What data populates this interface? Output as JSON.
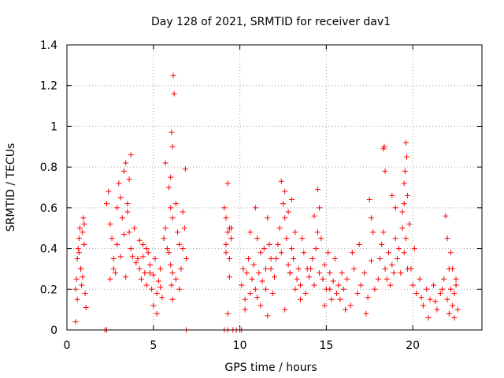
{
  "chart_data": {
    "type": "scatter",
    "title": "Day 128 of 2021, SRMTID for receiver dav1",
    "xlabel": "GPS time / hours",
    "ylabel": "SRMTID / TECUs",
    "xlim": [
      0,
      24
    ],
    "ylim": [
      0,
      1.4
    ],
    "xticks": [
      0,
      5,
      10,
      15,
      20
    ],
    "xtick_labels": [
      "0",
      "5",
      "10",
      "15",
      "20"
    ],
    "yticks": [
      0,
      0.2,
      0.4,
      0.6,
      0.8,
      1.0,
      1.2,
      1.4
    ],
    "ytick_labels": [
      "0",
      "0.2",
      "0.4",
      "0.6",
      "0.8",
      "1",
      "1.2",
      "1.4"
    ],
    "grid": true,
    "marker": "+",
    "marker_color": "#ff0000",
    "series": [
      {
        "name": "SRMTID",
        "x": [
          0.5,
          0.55,
          0.6,
          0.65,
          0.7,
          0.75,
          0.8,
          0.85,
          0.9,
          0.95,
          1.0,
          1.05,
          0.6,
          0.7,
          0.8,
          0.9,
          1.0,
          1.1,
          2.3,
          2.4,
          2.5,
          2.6,
          2.7,
          2.8,
          2.9,
          3.0,
          3.1,
          3.2,
          3.3,
          3.4,
          3.5,
          3.6,
          3.7,
          3.8,
          3.9,
          4.0,
          2.5,
          2.7,
          2.9,
          3.1,
          3.3,
          3.5,
          3.7,
          3.4,
          3.6,
          4.1,
          4.2,
          4.3,
          4.4,
          4.5,
          4.6,
          4.7,
          4.8,
          4.9,
          5.0,
          5.1,
          5.2,
          5.3,
          5.4,
          5.5,
          4.2,
          4.4,
          4.6,
          4.8,
          5.0,
          5.2,
          5.4,
          5.6,
          5.7,
          5.8,
          5.9,
          6.0,
          6.05,
          6.1,
          6.15,
          6.2,
          6.3,
          6.4,
          6.5,
          6.6,
          6.7,
          6.8,
          6.9,
          5.7,
          5.9,
          6.0,
          6.1,
          6.3,
          6.5,
          6.7,
          6.85,
          6.0,
          6.1,
          6.05,
          6.1,
          9.1,
          9.2,
          9.3,
          9.4,
          9.5,
          9.2,
          9.3,
          9.4,
          9.3,
          9.5,
          9.4,
          9.2,
          10.1,
          10.2,
          10.3,
          10.4,
          10.5,
          10.6,
          10.7,
          10.8,
          10.9,
          11.0,
          11.1,
          11.2,
          11.3,
          11.4,
          11.5,
          11.6,
          11.7,
          11.8,
          11.9,
          12.0,
          10.3,
          10.6,
          10.9,
          11.2,
          11.5,
          11.8,
          12.1,
          11.0,
          11.6,
          12.2,
          12.3,
          12.4,
          12.5,
          12.6,
          12.7,
          12.8,
          12.9,
          13.0,
          13.1,
          13.2,
          13.3,
          13.4,
          13.5,
          13.6,
          13.7,
          13.8,
          13.9,
          14.0,
          12.4,
          12.6,
          12.8,
          13.0,
          13.2,
          13.5,
          12.6,
          12.9,
          14.1,
          14.2,
          14.3,
          14.4,
          14.5,
          14.6,
          14.7,
          14.8,
          14.9,
          15.0,
          15.1,
          15.2,
          15.3,
          15.4,
          15.5,
          14.3,
          14.6,
          14.9,
          15.2,
          14.5,
          15.6,
          15.7,
          15.8,
          15.9,
          16.0,
          16.2,
          16.4,
          16.6,
          16.8,
          17.0,
          17.2,
          17.4,
          17.6,
          17.8,
          18.0,
          16.1,
          16.5,
          16.9,
          17.3,
          17.7,
          17.5,
          17.6,
          18.1,
          18.2,
          18.3,
          18.4,
          18.5,
          18.6,
          18.7,
          18.8,
          18.9,
          19.0,
          19.1,
          19.2,
          19.3,
          19.4,
          19.5,
          19.6,
          19.7,
          19.8,
          18.3,
          18.35,
          18.4,
          18.8,
          19.0,
          19.5,
          19.55,
          19.6,
          19.65,
          19.7,
          19.4,
          19.5,
          19.9,
          20.0,
          20.2,
          20.4,
          20.6,
          20.8,
          21.0,
          21.2,
          21.4,
          21.6,
          21.8,
          22.0,
          22.1,
          22.2,
          22.3,
          22.4,
          22.5,
          22.6,
          20.1,
          20.5,
          20.9,
          21.3,
          21.7,
          22.1,
          22.4,
          22.5,
          21.9,
          22.0,
          22.2,
          22.3,
          0.5,
          2.2,
          2.3,
          6.9,
          9.1,
          9.3,
          9.6,
          9.8,
          10.0,
          10.1
        ],
        "y": [
          0.2,
          0.25,
          0.35,
          0.4,
          0.45,
          0.5,
          0.3,
          0.22,
          0.48,
          0.55,
          0.42,
          0.18,
          0.15,
          0.38,
          0.3,
          0.26,
          0.52,
          0.11,
          0.62,
          0.68,
          0.52,
          0.45,
          0.35,
          0.28,
          0.6,
          0.72,
          0.65,
          0.55,
          0.78,
          0.82,
          0.58,
          0.48,
          0.4,
          0.36,
          0.5,
          0.33,
          0.25,
          0.3,
          0.42,
          0.36,
          0.47,
          0.62,
          0.86,
          0.26,
          0.74,
          0.35,
          0.3,
          0.25,
          0.42,
          0.28,
          0.22,
          0.38,
          0.32,
          0.2,
          0.27,
          0.35,
          0.18,
          0.24,
          0.3,
          0.16,
          0.44,
          0.36,
          0.4,
          0.28,
          0.12,
          0.08,
          0.21,
          0.45,
          0.5,
          0.4,
          0.38,
          0.75,
          0.97,
          0.55,
          1.25,
          1.16,
          0.62,
          0.48,
          0.42,
          0.3,
          0.58,
          0.5,
          0.35,
          0.82,
          0.7,
          0.6,
          0.9,
          0.25,
          0.2,
          0.4,
          0.79,
          0.32,
          0.28,
          0.22,
          0.15,
          0.6,
          0.55,
          0.48,
          0.5,
          0.45,
          0.42,
          0.72,
          0.26,
          0.08,
          0.5,
          0.35,
          0.38,
          0.22,
          0.3,
          0.15,
          0.28,
          0.35,
          0.18,
          0.25,
          0.32,
          0.2,
          0.45,
          0.28,
          0.38,
          0.24,
          0.4,
          0.3,
          0.55,
          0.42,
          0.35,
          0.18,
          0.26,
          0.1,
          0.48,
          0.6,
          0.12,
          0.2,
          0.3,
          0.35,
          0.16,
          0.07,
          0.42,
          0.5,
          0.38,
          0.62,
          0.55,
          0.45,
          0.32,
          0.28,
          0.4,
          0.35,
          0.48,
          0.25,
          0.3,
          0.22,
          0.45,
          0.38,
          0.18,
          0.3,
          0.26,
          0.73,
          0.68,
          0.58,
          0.64,
          0.2,
          0.15,
          0.1,
          0.28,
          0.3,
          0.35,
          0.22,
          0.4,
          0.69,
          0.28,
          0.45,
          0.25,
          0.32,
          0.2,
          0.38,
          0.28,
          0.15,
          0.24,
          0.35,
          0.56,
          0.6,
          0.12,
          0.2,
          0.48,
          0.18,
          0.22,
          0.15,
          0.28,
          0.2,
          0.25,
          0.12,
          0.3,
          0.18,
          0.22,
          0.28,
          0.16,
          0.34,
          0.2,
          0.25,
          0.1,
          0.38,
          0.42,
          0.08,
          0.48,
          0.64,
          0.55,
          0.35,
          0.42,
          0.48,
          0.3,
          0.25,
          0.38,
          0.22,
          0.32,
          0.28,
          0.45,
          0.35,
          0.4,
          0.28,
          0.5,
          0.38,
          0.45,
          0.3,
          0.52,
          0.89,
          0.9,
          0.78,
          0.66,
          0.6,
          0.72,
          0.78,
          0.92,
          0.85,
          0.66,
          0.58,
          0.62,
          0.3,
          0.22,
          0.18,
          0.25,
          0.12,
          0.2,
          0.15,
          0.22,
          0.1,
          0.18,
          0.25,
          0.15,
          0.08,
          0.2,
          0.12,
          0.18,
          0.22,
          0.1,
          0.4,
          0.16,
          0.06,
          0.14,
          0.2,
          0.3,
          0.06,
          0.25,
          0.56,
          0.45,
          0.38,
          0.3,
          0.04,
          0.0,
          0.0,
          0.0,
          0.0,
          0.0,
          0.0,
          0.0,
          0.0,
          0.0
        ]
      }
    ]
  }
}
